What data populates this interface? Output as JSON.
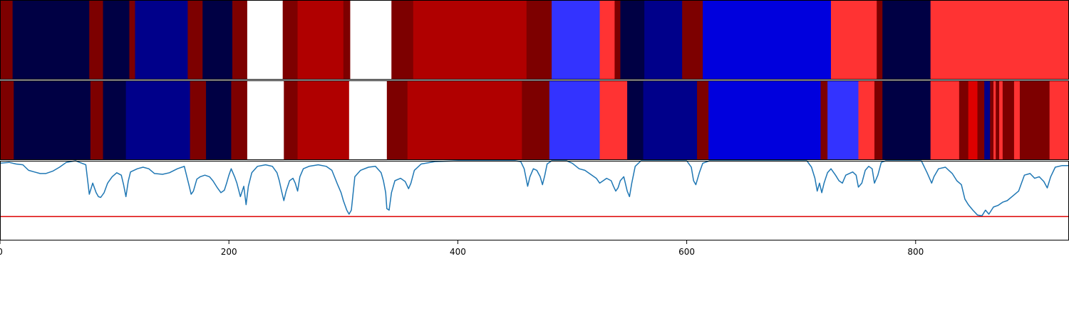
{
  "chart_data": {
    "type": "heatmap",
    "title": "",
    "xlabel": "",
    "ylabel": "",
    "xlim": [
      0,
      934
    ],
    "x_ticks": [
      0,
      200,
      400,
      600,
      800
    ],
    "x_tick_labels": [
      "0",
      "200",
      "400",
      "600",
      "800"
    ],
    "colormap": "seismic",
    "color_scale": {
      "white": "#ffffff",
      "dark_navy": "#000044",
      "navy": "#00008a",
      "blue": "#0000dd",
      "light_blue": "#3333ff",
      "light_red": "#ff3333",
      "bright_red": "#dd0000",
      "red": "#b00000",
      "maroon": "#7d0000"
    },
    "rows": [
      {
        "segments": [
          [
            0,
            11,
            "maroon"
          ],
          [
            11,
            78,
            "dark_navy"
          ],
          [
            78,
            90,
            "maroon"
          ],
          [
            90,
            113,
            "dark_navy"
          ],
          [
            113,
            118,
            "maroon"
          ],
          [
            118,
            164,
            "navy"
          ],
          [
            164,
            177,
            "maroon"
          ],
          [
            177,
            203,
            "dark_navy"
          ],
          [
            203,
            216,
            "maroon"
          ],
          [
            216,
            247,
            "white"
          ],
          [
            247,
            260,
            "maroon"
          ],
          [
            260,
            300,
            "red"
          ],
          [
            300,
            306,
            "maroon"
          ],
          [
            306,
            342,
            "white"
          ],
          [
            342,
            361,
            "maroon"
          ],
          [
            361,
            460,
            "red"
          ],
          [
            460,
            482,
            "maroon"
          ],
          [
            482,
            524,
            "light_blue"
          ],
          [
            524,
            537,
            "light_red"
          ],
          [
            537,
            542,
            "maroon"
          ],
          [
            542,
            563,
            "dark_navy"
          ],
          [
            563,
            596,
            "navy"
          ],
          [
            596,
            614,
            "maroon"
          ],
          [
            614,
            726,
            "blue"
          ],
          [
            726,
            766,
            "light_red"
          ],
          [
            766,
            771,
            "maroon"
          ],
          [
            771,
            813,
            "dark_navy"
          ],
          [
            813,
            934,
            "light_red"
          ]
        ]
      },
      {
        "segments": [
          [
            0,
            12,
            "maroon"
          ],
          [
            12,
            79,
            "dark_navy"
          ],
          [
            79,
            90,
            "maroon"
          ],
          [
            90,
            110,
            "dark_navy"
          ],
          [
            110,
            166,
            "navy"
          ],
          [
            166,
            180,
            "maroon"
          ],
          [
            180,
            202,
            "dark_navy"
          ],
          [
            202,
            216,
            "maroon"
          ],
          [
            216,
            248,
            "white"
          ],
          [
            248,
            260,
            "maroon"
          ],
          [
            260,
            305,
            "red"
          ],
          [
            305,
            338,
            "white"
          ],
          [
            338,
            356,
            "maroon"
          ],
          [
            356,
            456,
            "red"
          ],
          [
            456,
            480,
            "maroon"
          ],
          [
            480,
            524,
            "light_blue"
          ],
          [
            524,
            548,
            "light_red"
          ],
          [
            548,
            562,
            "dark_navy"
          ],
          [
            562,
            609,
            "navy"
          ],
          [
            609,
            619,
            "maroon"
          ],
          [
            619,
            717,
            "blue"
          ],
          [
            717,
            723,
            "maroon"
          ],
          [
            723,
            750,
            "light_blue"
          ],
          [
            750,
            764,
            "light_red"
          ],
          [
            764,
            771,
            "maroon"
          ],
          [
            771,
            813,
            "dark_navy"
          ],
          [
            813,
            838,
            "light_red"
          ],
          [
            838,
            846,
            "maroon"
          ],
          [
            846,
            854,
            "bright_red"
          ],
          [
            854,
            860,
            "maroon"
          ],
          [
            860,
            865,
            "navy"
          ],
          [
            865,
            868,
            "maroon"
          ],
          [
            868,
            870,
            "light_red"
          ],
          [
            870,
            873,
            "maroon"
          ],
          [
            873,
            876,
            "light_red"
          ],
          [
            876,
            886,
            "maroon"
          ],
          [
            886,
            891,
            "light_red"
          ],
          [
            891,
            917,
            "maroon"
          ],
          [
            917,
            934,
            "light_red"
          ]
        ]
      }
    ],
    "line_series": {
      "y_range": [
        0,
        1
      ],
      "color": "#1f77b4",
      "threshold": 0.3,
      "threshold_color": "#dd0000",
      "points": [
        [
          0,
          0.97
        ],
        [
          8,
          0.98
        ],
        [
          14,
          0.96
        ],
        [
          20,
          0.95
        ],
        [
          25,
          0.88
        ],
        [
          30,
          0.86
        ],
        [
          35,
          0.84
        ],
        [
          40,
          0.84
        ],
        [
          46,
          0.87
        ],
        [
          52,
          0.92
        ],
        [
          58,
          0.98
        ],
        [
          66,
          1.0
        ],
        [
          75,
          0.95
        ],
        [
          78,
          0.58
        ],
        [
          81,
          0.72
        ],
        [
          84,
          0.6
        ],
        [
          86,
          0.55
        ],
        [
          88,
          0.54
        ],
        [
          91,
          0.6
        ],
        [
          94,
          0.72
        ],
        [
          98,
          0.8
        ],
        [
          102,
          0.85
        ],
        [
          106,
          0.82
        ],
        [
          108,
          0.7
        ],
        [
          110,
          0.55
        ],
        [
          112,
          0.74
        ],
        [
          114,
          0.86
        ],
        [
          120,
          0.9
        ],
        [
          125,
          0.92
        ],
        [
          130,
          0.9
        ],
        [
          135,
          0.84
        ],
        [
          142,
          0.83
        ],
        [
          148,
          0.85
        ],
        [
          155,
          0.9
        ],
        [
          161,
          0.93
        ],
        [
          165,
          0.7
        ],
        [
          167,
          0.58
        ],
        [
          169,
          0.62
        ],
        [
          172,
          0.77
        ],
        [
          175,
          0.8
        ],
        [
          179,
          0.82
        ],
        [
          183,
          0.8
        ],
        [
          186,
          0.75
        ],
        [
          190,
          0.66
        ],
        [
          193,
          0.6
        ],
        [
          196,
          0.63
        ],
        [
          198,
          0.72
        ],
        [
          200,
          0.82
        ],
        [
          202,
          0.9
        ],
        [
          205,
          0.8
        ],
        [
          207,
          0.72
        ],
        [
          210,
          0.55
        ],
        [
          213,
          0.68
        ],
        [
          215,
          0.45
        ],
        [
          217,
          0.68
        ],
        [
          220,
          0.85
        ],
        [
          225,
          0.93
        ],
        [
          232,
          0.95
        ],
        [
          238,
          0.93
        ],
        [
          242,
          0.85
        ],
        [
          244,
          0.75
        ],
        [
          246,
          0.62
        ],
        [
          248,
          0.5
        ],
        [
          250,
          0.62
        ],
        [
          253,
          0.75
        ],
        [
          256,
          0.78
        ],
        [
          258,
          0.72
        ],
        [
          260,
          0.62
        ],
        [
          262,
          0.8
        ],
        [
          265,
          0.9
        ],
        [
          270,
          0.93
        ],
        [
          278,
          0.95
        ],
        [
          285,
          0.93
        ],
        [
          290,
          0.88
        ],
        [
          295,
          0.7
        ],
        [
          298,
          0.6
        ],
        [
          300,
          0.5
        ],
        [
          303,
          0.38
        ],
        [
          305,
          0.33
        ],
        [
          307,
          0.38
        ],
        [
          310,
          0.8
        ],
        [
          315,
          0.88
        ],
        [
          322,
          0.92
        ],
        [
          328,
          0.93
        ],
        [
          333,
          0.85
        ],
        [
          335,
          0.75
        ],
        [
          337,
          0.6
        ],
        [
          338,
          0.4
        ],
        [
          340,
          0.38
        ],
        [
          342,
          0.6
        ],
        [
          345,
          0.75
        ],
        [
          350,
          0.78
        ],
        [
          354,
          0.74
        ],
        [
          357,
          0.65
        ],
        [
          359,
          0.72
        ],
        [
          362,
          0.88
        ],
        [
          368,
          0.96
        ],
        [
          380,
          0.99
        ],
        [
          400,
          1.0
        ],
        [
          430,
          1.0
        ],
        [
          450,
          1.0
        ],
        [
          455,
          0.99
        ],
        [
          458,
          0.9
        ],
        [
          461,
          0.68
        ],
        [
          463,
          0.8
        ],
        [
          466,
          0.9
        ],
        [
          469,
          0.88
        ],
        [
          472,
          0.8
        ],
        [
          474,
          0.7
        ],
        [
          476,
          0.82
        ],
        [
          478,
          0.96
        ],
        [
          482,
          1.0
        ],
        [
          495,
          1.0
        ],
        [
          500,
          0.97
        ],
        [
          506,
          0.9
        ],
        [
          511,
          0.88
        ],
        [
          516,
          0.83
        ],
        [
          521,
          0.78
        ],
        [
          524,
          0.72
        ],
        [
          527,
          0.75
        ],
        [
          530,
          0.78
        ],
        [
          534,
          0.75
        ],
        [
          536,
          0.68
        ],
        [
          538,
          0.62
        ],
        [
          540,
          0.66
        ],
        [
          542,
          0.75
        ],
        [
          545,
          0.8
        ],
        [
          548,
          0.62
        ],
        [
          550,
          0.55
        ],
        [
          552,
          0.72
        ],
        [
          555,
          0.93
        ],
        [
          560,
          1.0
        ],
        [
          600,
          1.0
        ],
        [
          604,
          0.92
        ],
        [
          606,
          0.75
        ],
        [
          608,
          0.7
        ],
        [
          611,
          0.85
        ],
        [
          614,
          0.97
        ],
        [
          620,
          1.0
        ],
        [
          705,
          1.0
        ],
        [
          709,
          0.92
        ],
        [
          712,
          0.78
        ],
        [
          714,
          0.62
        ],
        [
          716,
          0.72
        ],
        [
          718,
          0.6
        ],
        [
          720,
          0.72
        ],
        [
          723,
          0.85
        ],
        [
          726,
          0.9
        ],
        [
          730,
          0.82
        ],
        [
          733,
          0.75
        ],
        [
          736,
          0.72
        ],
        [
          739,
          0.82
        ],
        [
          742,
          0.84
        ],
        [
          745,
          0.86
        ],
        [
          748,
          0.82
        ],
        [
          750,
          0.67
        ],
        [
          753,
          0.72
        ],
        [
          756,
          0.88
        ],
        [
          759,
          0.93
        ],
        [
          762,
          0.9
        ],
        [
          764,
          0.72
        ],
        [
          767,
          0.82
        ],
        [
          770,
          0.98
        ],
        [
          774,
          1.0
        ],
        [
          805,
          1.0
        ],
        [
          810,
          0.85
        ],
        [
          814,
          0.72
        ],
        [
          816,
          0.8
        ],
        [
          820,
          0.9
        ],
        [
          826,
          0.92
        ],
        [
          832,
          0.84
        ],
        [
          836,
          0.75
        ],
        [
          840,
          0.7
        ],
        [
          843,
          0.52
        ],
        [
          846,
          0.45
        ],
        [
          850,
          0.38
        ],
        [
          854,
          0.32
        ],
        [
          858,
          0.31
        ],
        [
          861,
          0.38
        ],
        [
          864,
          0.33
        ],
        [
          868,
          0.42
        ],
        [
          872,
          0.44
        ],
        [
          876,
          0.48
        ],
        [
          880,
          0.5
        ],
        [
          885,
          0.56
        ],
        [
          890,
          0.62
        ],
        [
          895,
          0.82
        ],
        [
          900,
          0.84
        ],
        [
          904,
          0.78
        ],
        [
          908,
          0.8
        ],
        [
          912,
          0.74
        ],
        [
          915,
          0.66
        ],
        [
          918,
          0.8
        ],
        [
          922,
          0.92
        ],
        [
          928,
          0.94
        ],
        [
          934,
          0.94
        ]
      ]
    }
  }
}
